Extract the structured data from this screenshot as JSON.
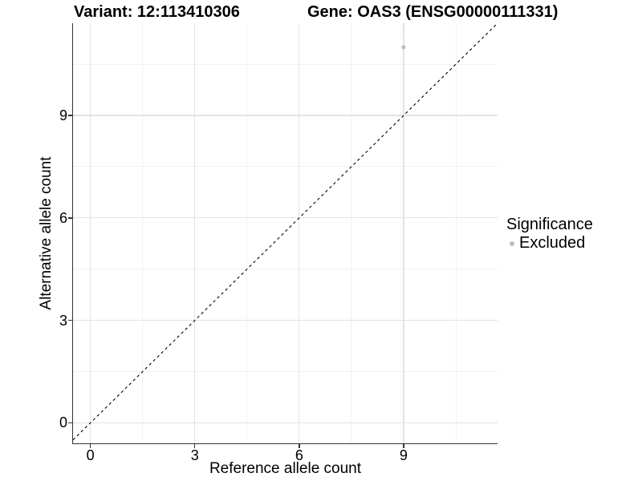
{
  "titles": {
    "variant": "Variant: 12:113410306",
    "gene": "Gene: OAS3 (ENSG00000111331)"
  },
  "axes": {
    "x": {
      "label": "Reference allele count",
      "major_ticks": [
        0,
        3,
        6,
        9
      ],
      "minor_ticks": [
        1.5,
        4.5,
        7.5,
        10.5
      ],
      "domain": [
        -0.5,
        11.7
      ]
    },
    "y": {
      "label": "Alternative allele count",
      "major_ticks": [
        0,
        3,
        6,
        9
      ],
      "minor_ticks": [
        1.5,
        4.5,
        7.5,
        10.5
      ],
      "domain": [
        -0.6,
        11.7
      ]
    }
  },
  "legend": {
    "title": "Significance",
    "items": [
      {
        "label": "Excluded",
        "marker": "circle-icon",
        "color": "#bdbdbd"
      }
    ]
  },
  "chart_data": {
    "type": "scatter",
    "title_left": "Variant: 12:113410306",
    "title_right": "Gene: OAS3 (ENSG00000111331)",
    "xlabel": "Reference allele count",
    "ylabel": "Alternative allele count",
    "xlim": [
      -0.5,
      11.7
    ],
    "ylim": [
      -0.6,
      11.7
    ],
    "x_ticks": [
      0,
      3,
      6,
      9
    ],
    "y_ticks": [
      0,
      3,
      6,
      9
    ],
    "grid": "major-and-minor",
    "legend_position": "right",
    "series": [
      {
        "name": "Excluded",
        "color": "#bdbdbd",
        "points": [
          {
            "x": 9,
            "y": 11
          }
        ]
      }
    ],
    "reference_line": {
      "equation": "y = x",
      "style": "dashed",
      "color": "#000000"
    }
  },
  "colors": {
    "grid_major": "#e3e3e3",
    "grid_minor": "#f1f1f1",
    "axis": "#333333",
    "text": "#000000",
    "point": "#bdbdbd",
    "reference_line": "#000000"
  }
}
